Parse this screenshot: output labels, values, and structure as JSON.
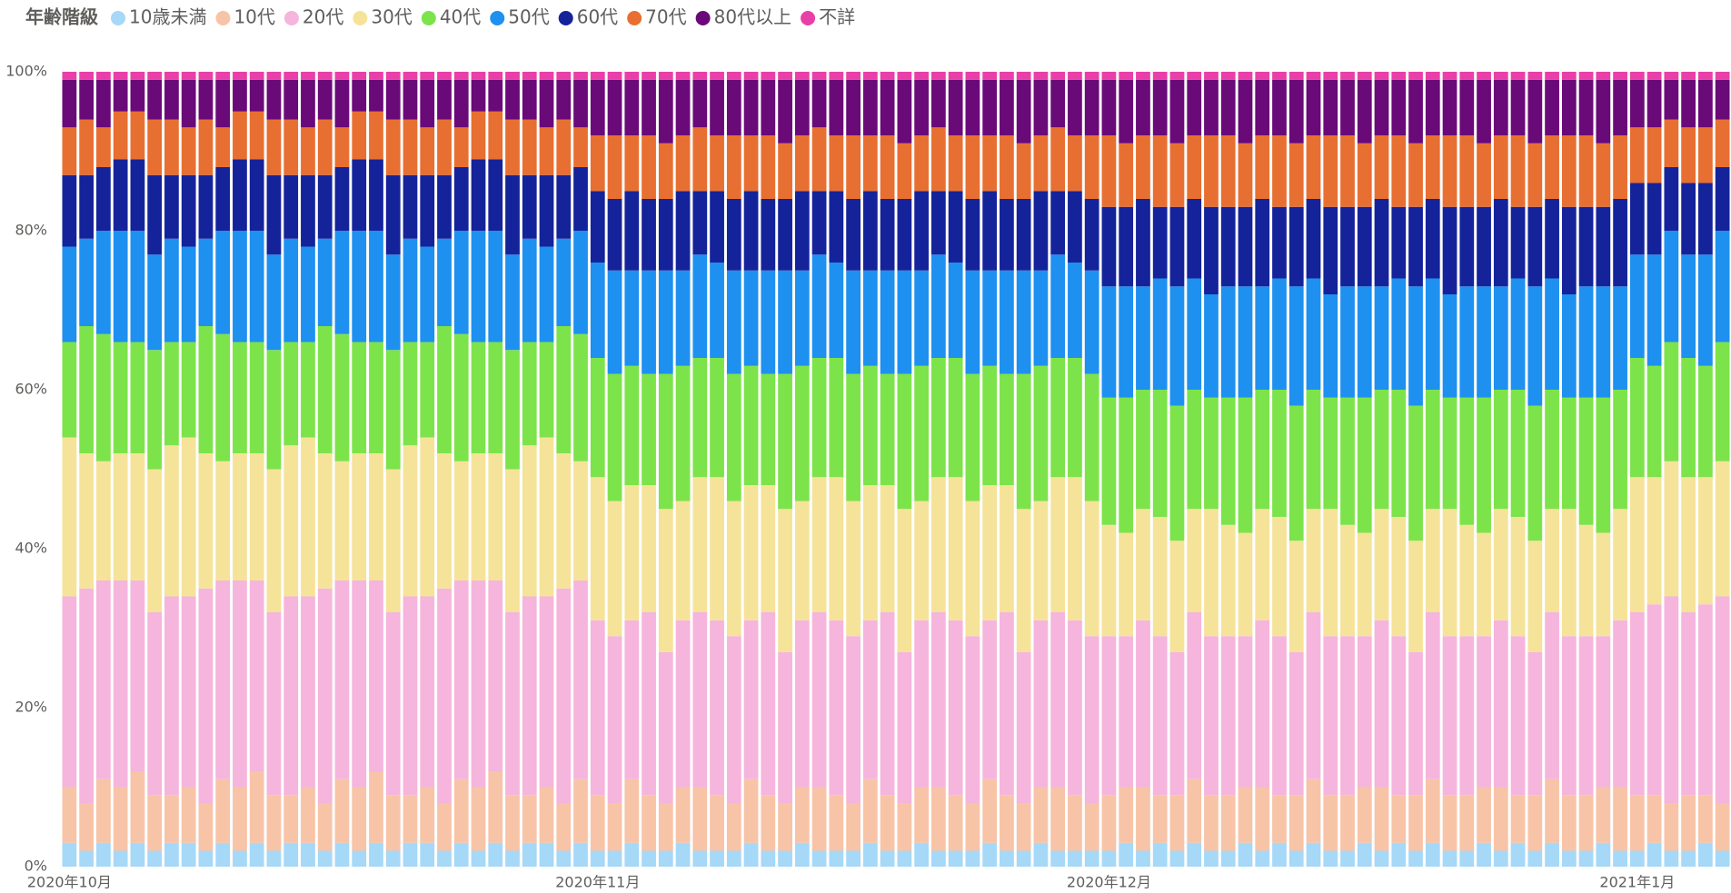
{
  "chart_data": {
    "type": "stacked_bar",
    "legend_title": "年齢階級",
    "legend_position": "top-left",
    "grid": false,
    "categories": [
      "2020年10月",
      null,
      null,
      null,
      null,
      null,
      null,
      null,
      null,
      null,
      null,
      null,
      null,
      null,
      null,
      null,
      null,
      null,
      null,
      null,
      null,
      null,
      null,
      null,
      null,
      null,
      null,
      null,
      null,
      null,
      null,
      "2020年11月",
      null,
      null,
      null,
      null,
      null,
      null,
      null,
      null,
      null,
      null,
      null,
      null,
      null,
      null,
      null,
      null,
      null,
      null,
      null,
      null,
      null,
      null,
      null,
      null,
      null,
      null,
      null,
      null,
      null,
      "2020年12月",
      null,
      null,
      null,
      null,
      null,
      null,
      null,
      null,
      null,
      null,
      null,
      null,
      null,
      null,
      null,
      null,
      null,
      null,
      null,
      null,
      null,
      null,
      null,
      null,
      null,
      null,
      null,
      null,
      null,
      null,
      "2021年1月",
      null,
      null,
      null,
      null,
      null
    ],
    "ylim": [
      0,
      100
    ],
    "yticks": [
      {
        "value": 0,
        "label": "0%"
      },
      {
        "value": 20,
        "label": "20%"
      },
      {
        "value": 40,
        "label": "40%"
      },
      {
        "value": 60,
        "label": "60%"
      },
      {
        "value": 80,
        "label": "80%"
      },
      {
        "value": 100,
        "label": "100%"
      }
    ],
    "series": [
      {
        "name": "10歳未満",
        "color": "#a6d8f7",
        "values": [
          3,
          2,
          3,
          2,
          3,
          2,
          3,
          3,
          2,
          3,
          2,
          3,
          2,
          3,
          3,
          2,
          3,
          2,
          3,
          2,
          3,
          3,
          2,
          3,
          2,
          3,
          2,
          3,
          3,
          2,
          3,
          2,
          2,
          3,
          2,
          2,
          3,
          2,
          2,
          2,
          3,
          2,
          2,
          3,
          2,
          2,
          2,
          3,
          2,
          2,
          3,
          2,
          2,
          2,
          3,
          2,
          2,
          3,
          2,
          2,
          2,
          2,
          3,
          2,
          3,
          2,
          3,
          2,
          2,
          3,
          2,
          3,
          2,
          3,
          2,
          2,
          3,
          2,
          3,
          2,
          3,
          2,
          2,
          3,
          2,
          3,
          2,
          3,
          2,
          2,
          3,
          2,
          2,
          3,
          2,
          2,
          3,
          2
        ]
      },
      {
        "name": "10代",
        "color": "#f7c4a8",
        "values": [
          7,
          6,
          8,
          8,
          9,
          7,
          6,
          7,
          6,
          8,
          8,
          9,
          7,
          6,
          7,
          6,
          8,
          8,
          9,
          7,
          6,
          7,
          6,
          8,
          8,
          9,
          7,
          6,
          7,
          6,
          8,
          7,
          6,
          8,
          7,
          6,
          7,
          8,
          7,
          6,
          8,
          7,
          6,
          7,
          8,
          7,
          6,
          8,
          7,
          6,
          7,
          8,
          7,
          6,
          8,
          7,
          6,
          7,
          8,
          7,
          6,
          7,
          7,
          8,
          6,
          7,
          8,
          7,
          7,
          7,
          8,
          6,
          7,
          8,
          7,
          7,
          7,
          8,
          6,
          7,
          8,
          7,
          7,
          7,
          8,
          6,
          7,
          8,
          7,
          7,
          7,
          8,
          7,
          6,
          6,
          7,
          6,
          6
        ]
      },
      {
        "name": "20代",
        "color": "#f5b5dc",
        "values": [
          24,
          27,
          25,
          26,
          24,
          23,
          25,
          24,
          27,
          25,
          26,
          24,
          23,
          25,
          24,
          27,
          25,
          26,
          24,
          23,
          25,
          24,
          27,
          25,
          26,
          24,
          23,
          25,
          24,
          27,
          25,
          22,
          21,
          20,
          23,
          19,
          21,
          22,
          22,
          21,
          20,
          23,
          19,
          21,
          22,
          22,
          21,
          20,
          23,
          19,
          21,
          22,
          22,
          21,
          20,
          23,
          19,
          21,
          22,
          22,
          21,
          20,
          19,
          21,
          20,
          18,
          21,
          20,
          20,
          19,
          21,
          20,
          18,
          21,
          20,
          20,
          19,
          21,
          20,
          18,
          21,
          20,
          20,
          19,
          21,
          20,
          18,
          21,
          20,
          20,
          19,
          21,
          23,
          24,
          26,
          23,
          24,
          26
        ]
      },
      {
        "name": "30代",
        "color": "#f5e39a",
        "values": [
          20,
          17,
          15,
          16,
          16,
          18,
          19,
          20,
          17,
          15,
          16,
          16,
          18,
          19,
          20,
          17,
          15,
          16,
          16,
          18,
          19,
          20,
          17,
          15,
          16,
          16,
          18,
          19,
          20,
          17,
          15,
          18,
          17,
          17,
          16,
          18,
          15,
          17,
          18,
          17,
          17,
          16,
          18,
          15,
          17,
          18,
          17,
          17,
          16,
          18,
          15,
          17,
          18,
          17,
          17,
          16,
          18,
          15,
          17,
          18,
          17,
          14,
          13,
          14,
          15,
          14,
          13,
          16,
          14,
          13,
          14,
          15,
          14,
          13,
          16,
          14,
          13,
          14,
          15,
          14,
          13,
          16,
          14,
          13,
          14,
          15,
          14,
          13,
          16,
          14,
          13,
          14,
          17,
          16,
          17,
          17,
          16,
          17
        ]
      },
      {
        "name": "40代",
        "color": "#7de34a",
        "values": [
          12,
          16,
          16,
          14,
          14,
          15,
          13,
          12,
          16,
          16,
          14,
          14,
          15,
          13,
          12,
          16,
          16,
          14,
          14,
          15,
          13,
          12,
          16,
          16,
          14,
          14,
          15,
          13,
          12,
          16,
          16,
          15,
          16,
          15,
          14,
          17,
          17,
          15,
          15,
          16,
          15,
          14,
          17,
          17,
          15,
          15,
          16,
          15,
          14,
          17,
          17,
          15,
          15,
          16,
          15,
          14,
          17,
          17,
          15,
          15,
          16,
          16,
          17,
          15,
          16,
          17,
          15,
          14,
          16,
          17,
          15,
          16,
          17,
          15,
          14,
          16,
          17,
          15,
          16,
          17,
          15,
          14,
          16,
          17,
          15,
          16,
          17,
          15,
          14,
          16,
          17,
          15,
          15,
          14,
          15,
          15,
          14,
          15
        ]
      },
      {
        "name": "50代",
        "color": "#1e90f0",
        "values": [
          12,
          11,
          13,
          14,
          14,
          12,
          13,
          12,
          11,
          13,
          14,
          14,
          12,
          13,
          12,
          11,
          13,
          14,
          14,
          12,
          13,
          12,
          11,
          13,
          14,
          14,
          12,
          13,
          12,
          11,
          13,
          12,
          13,
          12,
          13,
          13,
          12,
          13,
          12,
          13,
          12,
          13,
          13,
          12,
          13,
          12,
          13,
          12,
          13,
          13,
          12,
          13,
          12,
          13,
          12,
          13,
          13,
          12,
          13,
          12,
          13,
          14,
          14,
          13,
          14,
          15,
          14,
          13,
          14,
          14,
          13,
          14,
          15,
          14,
          13,
          14,
          14,
          13,
          14,
          15,
          14,
          13,
          14,
          14,
          13,
          14,
          15,
          14,
          13,
          14,
          14,
          13,
          13,
          14,
          14,
          13,
          14,
          14
        ]
      },
      {
        "name": "60代",
        "color": "#15239a",
        "values": [
          9,
          8,
          8,
          9,
          9,
          10,
          8,
          9,
          8,
          8,
          9,
          9,
          10,
          8,
          9,
          8,
          8,
          9,
          9,
          10,
          8,
          9,
          8,
          8,
          9,
          9,
          10,
          8,
          9,
          8,
          8,
          9,
          9,
          10,
          9,
          9,
          10,
          8,
          9,
          9,
          10,
          9,
          9,
          10,
          8,
          9,
          9,
          10,
          9,
          9,
          10,
          8,
          9,
          9,
          10,
          9,
          9,
          10,
          8,
          9,
          9,
          10,
          10,
          11,
          9,
          10,
          10,
          11,
          10,
          10,
          11,
          9,
          10,
          10,
          11,
          10,
          10,
          11,
          9,
          10,
          10,
          11,
          10,
          10,
          11,
          9,
          10,
          10,
          11,
          10,
          10,
          11,
          9,
          9,
          8,
          9,
          9,
          8
        ]
      },
      {
        "name": "70代",
        "color": "#e86f32",
        "values": [
          6,
          7,
          5,
          6,
          6,
          7,
          7,
          6,
          7,
          5,
          6,
          6,
          7,
          7,
          6,
          7,
          5,
          6,
          6,
          7,
          7,
          6,
          7,
          5,
          6,
          6,
          7,
          7,
          6,
          7,
          5,
          7,
          8,
          7,
          8,
          7,
          7,
          8,
          7,
          8,
          7,
          8,
          7,
          7,
          8,
          7,
          8,
          7,
          8,
          7,
          7,
          8,
          7,
          8,
          7,
          8,
          7,
          7,
          8,
          7,
          8,
          9,
          8,
          8,
          9,
          8,
          8,
          9,
          9,
          8,
          8,
          9,
          8,
          8,
          9,
          9,
          8,
          8,
          9,
          8,
          8,
          9,
          9,
          8,
          8,
          9,
          8,
          8,
          9,
          9,
          8,
          8,
          7,
          7,
          6,
          7,
          7,
          6
        ]
      },
      {
        "name": "80代以上",
        "color": "#6a0a78",
        "values": [
          6,
          5,
          6,
          4,
          4,
          5,
          5,
          6,
          5,
          6,
          4,
          4,
          5,
          5,
          6,
          5,
          6,
          4,
          4,
          5,
          5,
          6,
          5,
          6,
          4,
          4,
          5,
          5,
          6,
          5,
          6,
          7,
          7,
          7,
          7,
          8,
          7,
          6,
          7,
          7,
          7,
          7,
          8,
          7,
          6,
          7,
          7,
          7,
          7,
          8,
          7,
          6,
          7,
          7,
          7,
          7,
          8,
          7,
          6,
          7,
          7,
          7,
          8,
          7,
          7,
          8,
          7,
          7,
          7,
          8,
          7,
          7,
          8,
          7,
          7,
          7,
          8,
          7,
          7,
          8,
          7,
          7,
          7,
          8,
          7,
          7,
          8,
          7,
          7,
          7,
          8,
          7,
          6,
          6,
          5,
          6,
          6,
          5
        ]
      },
      {
        "name": "不詳",
        "color": "#e840a8",
        "values": [
          1,
          1,
          1,
          1,
          1,
          1,
          1,
          1,
          1,
          1,
          1,
          1,
          1,
          1,
          1,
          1,
          1,
          1,
          1,
          1,
          1,
          1,
          1,
          1,
          1,
          1,
          1,
          1,
          1,
          1,
          1,
          1,
          1,
          1,
          1,
          1,
          1,
          1,
          1,
          1,
          1,
          1,
          1,
          1,
          1,
          1,
          1,
          1,
          1,
          1,
          1,
          1,
          1,
          1,
          1,
          1,
          1,
          1,
          1,
          1,
          1,
          1,
          1,
          1,
          1,
          1,
          1,
          1,
          1,
          1,
          1,
          1,
          1,
          1,
          1,
          1,
          1,
          1,
          1,
          1,
          1,
          1,
          1,
          1,
          1,
          1,
          1,
          1,
          1,
          1,
          1,
          1,
          1,
          1,
          1,
          1,
          1,
          1
        ]
      }
    ]
  }
}
